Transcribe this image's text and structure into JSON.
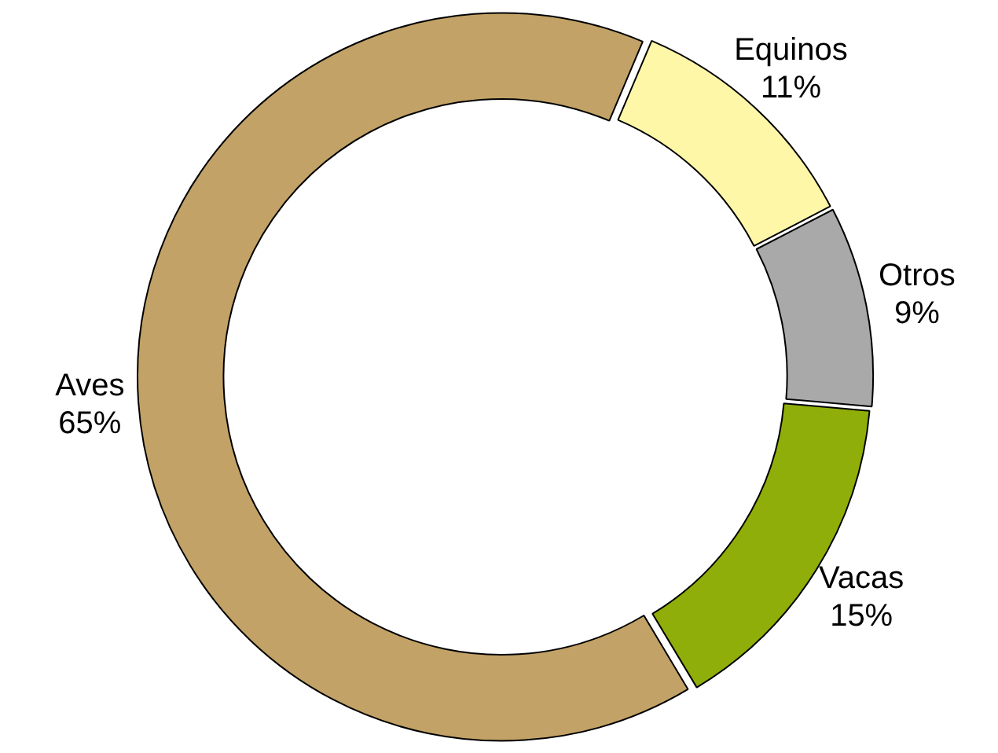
{
  "chart_data": {
    "type": "donut",
    "categories": [
      "Equinos",
      "Otros",
      "Vacas",
      "Aves"
    ],
    "values": [
      11,
      9,
      15,
      65
    ],
    "colors": [
      "#fff7a8",
      "#a9a9a9",
      "#8fae0a",
      "#c2a266"
    ],
    "value_labels": [
      "11%",
      "9%",
      "15%",
      "65%"
    ],
    "legend": false
  }
}
